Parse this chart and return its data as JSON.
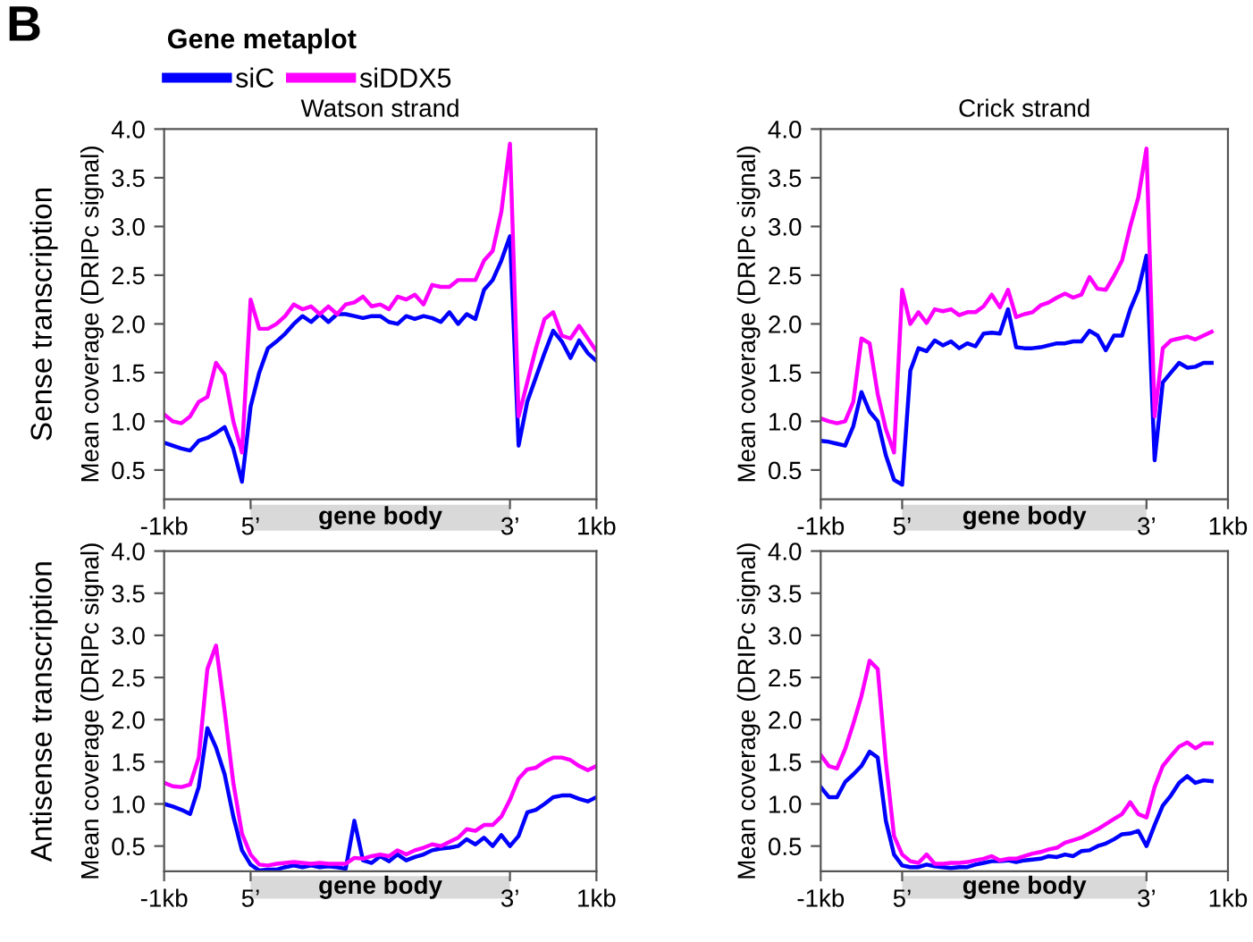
{
  "chart_data": [
    {
      "type": "line",
      "title": "Watson strand",
      "legend_title": "Gene metaplot",
      "legend": "top left",
      "ylabel": "Mean coverage (DRIPc signal)",
      "annotations": [
        "B",
        "Sense transcription",
        "gene body"
      ],
      "categories": [
        "-1kb",
        null,
        null,
        null,
        null,
        null,
        null,
        null,
        null,
        null,
        "5’",
        null,
        null,
        null,
        null,
        null,
        null,
        null,
        null,
        null,
        null,
        null,
        null,
        null,
        null,
        null,
        null,
        null,
        null,
        null,
        null,
        null,
        null,
        null,
        null,
        null,
        null,
        null,
        null,
        null,
        "3’",
        null,
        null,
        null,
        null,
        null,
        null,
        null,
        null,
        null,
        "1kb"
      ],
      "ylim": [
        0.2,
        4.0
      ],
      "yticks": [
        {
          "value": 0.5,
          "label": "0.5"
        },
        {
          "value": 1,
          "label": "1.0"
        },
        {
          "value": 1.5,
          "label": "1.5"
        },
        {
          "value": 2,
          "label": "2.0"
        },
        {
          "value": 2.5,
          "label": "2.5"
        },
        {
          "value": 3,
          "label": "3.0"
        },
        {
          "value": 3.5,
          "label": "3.5"
        },
        {
          "value": 4,
          "label": "4.0"
        }
      ],
      "series": [
        {
          "name": "siC",
          "color": "#0000ff",
          "values": [
            0.78,
            0.75,
            0.72,
            0.7,
            0.8,
            0.83,
            0.88,
            0.94,
            0.72,
            0.38,
            1.15,
            1.5,
            1.75,
            1.82,
            1.9,
            2.0,
            2.08,
            2.02,
            2.1,
            2.02,
            2.1,
            2.1,
            2.08,
            2.06,
            2.08,
            2.08,
            2.02,
            2.0,
            2.08,
            2.05,
            2.08,
            2.06,
            2.02,
            2.12,
            2.0,
            2.1,
            2.05,
            2.35,
            2.45,
            2.65,
            2.9,
            0.75,
            1.2,
            1.45,
            1.7,
            1.93,
            1.82,
            1.65,
            1.83,
            1.7,
            1.62
          ]
        },
        {
          "name": "siDDX5",
          "color": "#ff00ff",
          "values": [
            1.07,
            1.0,
            0.98,
            1.05,
            1.2,
            1.25,
            1.6,
            1.48,
            1.0,
            0.68,
            2.25,
            1.95,
            1.95,
            2.0,
            2.08,
            2.2,
            2.15,
            2.18,
            2.1,
            2.18,
            2.1,
            2.2,
            2.22,
            2.28,
            2.18,
            2.2,
            2.15,
            2.28,
            2.25,
            2.3,
            2.2,
            2.4,
            2.38,
            2.38,
            2.45,
            2.45,
            2.45,
            2.65,
            2.75,
            3.15,
            3.85,
            1.05,
            1.4,
            1.75,
            2.05,
            2.12,
            1.88,
            1.85,
            1.98,
            1.85,
            1.72
          ]
        }
      ]
    },
    {
      "type": "line",
      "title": "Crick strand",
      "ylabel": "Mean coverage (DRIPc signal)",
      "annotations": [
        "gene body"
      ],
      "categories": [
        "-1kb",
        null,
        null,
        null,
        null,
        null,
        null,
        null,
        null,
        null,
        "5’",
        null,
        null,
        null,
        null,
        null,
        null,
        null,
        null,
        null,
        null,
        null,
        null,
        null,
        null,
        null,
        null,
        null,
        null,
        null,
        null,
        null,
        null,
        null,
        null,
        null,
        null,
        null,
        null,
        null,
        "3’",
        null,
        null,
        null,
        null,
        null,
        null,
        null,
        null,
        null,
        "1kb"
      ],
      "ylim": [
        0.2,
        4.0
      ],
      "yticks": [
        {
          "value": 0.5,
          "label": "0.5"
        },
        {
          "value": 1,
          "label": "1.0"
        },
        {
          "value": 1.5,
          "label": "1.5"
        },
        {
          "value": 2,
          "label": "2.0"
        },
        {
          "value": 2.5,
          "label": "2.5"
        },
        {
          "value": 3,
          "label": "3.0"
        },
        {
          "value": 3.5,
          "label": "3.5"
        },
        {
          "value": 4,
          "label": "4.0"
        }
      ],
      "series": [
        {
          "color": "#0000ff",
          "values": [
            0.8,
            0.79,
            0.77,
            0.75,
            0.95,
            1.3,
            1.1,
            1.0,
            0.65,
            0.4,
            0.35,
            1.52,
            1.75,
            1.72,
            1.83,
            1.78,
            1.82,
            1.75,
            1.8,
            1.77,
            1.9,
            1.91,
            1.9,
            2.15,
            1.76,
            1.75,
            1.75,
            1.76,
            1.78,
            1.8,
            1.8,
            1.82,
            1.82,
            1.93,
            1.88,
            1.73,
            1.88,
            1.88,
            2.15,
            2.35,
            2.7,
            0.6,
            1.4,
            1.5,
            1.6,
            1.55,
            1.56,
            1.6,
            1.6,
            null,
            null
          ]
        },
        {
          "color": "#ff00ff",
          "values": [
            1.03,
            1.0,
            0.98,
            1.0,
            1.2,
            1.85,
            1.8,
            1.28,
            0.92,
            0.68,
            2.35,
            2.0,
            2.12,
            2.01,
            2.15,
            2.13,
            2.15,
            2.09,
            2.12,
            2.12,
            2.18,
            2.3,
            2.17,
            2.35,
            2.07,
            2.1,
            2.12,
            2.19,
            2.22,
            2.27,
            2.31,
            2.27,
            2.3,
            2.48,
            2.36,
            2.35,
            2.49,
            2.65,
            3.0,
            3.3,
            3.8,
            1.05,
            1.75,
            1.83,
            1.85,
            1.87,
            1.84,
            1.88,
            1.92,
            null,
            null
          ]
        }
      ]
    },
    {
      "type": "line",
      "ylabel": "Mean coverage (DRIPc signal)",
      "annotations": [
        "Antisense transcription",
        "gene body"
      ],
      "categories": [
        "-1kb",
        null,
        null,
        null,
        null,
        null,
        null,
        null,
        null,
        null,
        "5’",
        null,
        null,
        null,
        null,
        null,
        null,
        null,
        null,
        null,
        null,
        null,
        null,
        null,
        null,
        null,
        null,
        null,
        null,
        null,
        null,
        null,
        null,
        null,
        null,
        null,
        null,
        null,
        null,
        null,
        "3’",
        null,
        null,
        null,
        null,
        null,
        null,
        null,
        null,
        null,
        "1kb"
      ],
      "ylim": [
        0.2,
        4.0
      ],
      "yticks": [
        {
          "value": 0.5,
          "label": "0.5"
        },
        {
          "value": 1,
          "label": "1.0"
        },
        {
          "value": 1.5,
          "label": "1.5"
        },
        {
          "value": 2,
          "label": "2.0"
        },
        {
          "value": 2.5,
          "label": "2.5"
        },
        {
          "value": 3,
          "label": "3.0"
        },
        {
          "value": 3.5,
          "label": "3.5"
        },
        {
          "value": 4,
          "label": "4.0"
        }
      ],
      "series": [
        {
          "color": "#0000ff",
          "values": [
            1.0,
            0.97,
            0.93,
            0.88,
            1.2,
            1.9,
            1.67,
            1.35,
            0.85,
            0.45,
            0.28,
            0.21,
            0.22,
            0.22,
            0.25,
            0.27,
            0.25,
            0.27,
            0.25,
            0.26,
            0.25,
            0.23,
            0.8,
            0.33,
            0.3,
            0.38,
            0.32,
            0.4,
            0.33,
            0.37,
            0.4,
            0.45,
            0.47,
            0.48,
            0.5,
            0.58,
            0.52,
            0.6,
            0.5,
            0.63,
            0.5,
            0.62,
            0.9,
            0.93,
            1.0,
            1.08,
            1.1,
            1.1,
            1.06,
            1.03,
            1.08
          ]
        },
        {
          "color": "#ff00ff",
          "values": [
            1.25,
            1.21,
            1.2,
            1.23,
            1.55,
            2.6,
            2.88,
            2.1,
            1.25,
            0.65,
            0.4,
            0.28,
            0.27,
            0.29,
            0.3,
            0.31,
            0.3,
            0.29,
            0.3,
            0.29,
            0.29,
            0.29,
            0.36,
            0.35,
            0.38,
            0.4,
            0.38,
            0.45,
            0.4,
            0.45,
            0.48,
            0.52,
            0.5,
            0.55,
            0.6,
            0.7,
            0.68,
            0.75,
            0.75,
            0.85,
            1.05,
            1.3,
            1.41,
            1.43,
            1.5,
            1.55,
            1.55,
            1.52,
            1.45,
            1.4,
            1.45
          ]
        }
      ]
    },
    {
      "type": "line",
      "ylabel": "Mean coverage (DRIPc signal)",
      "annotations": [
        "gene body"
      ],
      "categories": [
        "-1kb",
        null,
        null,
        null,
        null,
        null,
        null,
        null,
        null,
        null,
        "5’",
        null,
        null,
        null,
        null,
        null,
        null,
        null,
        null,
        null,
        null,
        null,
        null,
        null,
        null,
        null,
        null,
        null,
        null,
        null,
        null,
        null,
        null,
        null,
        null,
        null,
        null,
        null,
        null,
        null,
        "3’",
        null,
        null,
        null,
        null,
        null,
        null,
        null,
        null,
        null,
        "1kb"
      ],
      "ylim": [
        0.2,
        4.0
      ],
      "yticks": [
        {
          "value": 0.5,
          "label": "0.5"
        },
        {
          "value": 1,
          "label": "1.0"
        },
        {
          "value": 1.5,
          "label": "1.5"
        },
        {
          "value": 2,
          "label": "2.0"
        },
        {
          "value": 2.5,
          "label": "2.5"
        },
        {
          "value": 3,
          "label": "3.0"
        },
        {
          "value": 3.5,
          "label": "3.5"
        },
        {
          "value": 4,
          "label": "4.0"
        }
      ],
      "series": [
        {
          "color": "#0000ff",
          "values": [
            1.2,
            1.08,
            1.08,
            1.26,
            1.35,
            1.45,
            1.62,
            1.55,
            0.8,
            0.4,
            0.27,
            0.25,
            0.25,
            0.28,
            0.26,
            0.25,
            0.24,
            0.25,
            0.25,
            0.28,
            0.3,
            0.32,
            0.32,
            0.33,
            0.31,
            0.33,
            0.34,
            0.35,
            0.38,
            0.37,
            0.4,
            0.38,
            0.44,
            0.45,
            0.5,
            0.53,
            0.58,
            0.64,
            0.65,
            0.68,
            0.5,
            0.75,
            0.98,
            1.1,
            1.25,
            1.33,
            1.25,
            1.28,
            1.27,
            null,
            null
          ]
        },
        {
          "color": "#ff00ff",
          "values": [
            1.58,
            1.45,
            1.42,
            1.65,
            1.95,
            2.28,
            2.7,
            2.6,
            1.5,
            0.62,
            0.4,
            0.32,
            0.3,
            0.4,
            0.29,
            0.29,
            0.3,
            0.3,
            0.31,
            0.33,
            0.35,
            0.38,
            0.33,
            0.35,
            0.35,
            0.38,
            0.41,
            0.43,
            0.46,
            0.48,
            0.54,
            0.57,
            0.6,
            0.65,
            0.7,
            0.76,
            0.82,
            0.88,
            1.02,
            0.88,
            0.84,
            1.2,
            1.45,
            1.57,
            1.68,
            1.73,
            1.66,
            1.72,
            1.72,
            null,
            null
          ]
        }
      ]
    }
  ]
}
